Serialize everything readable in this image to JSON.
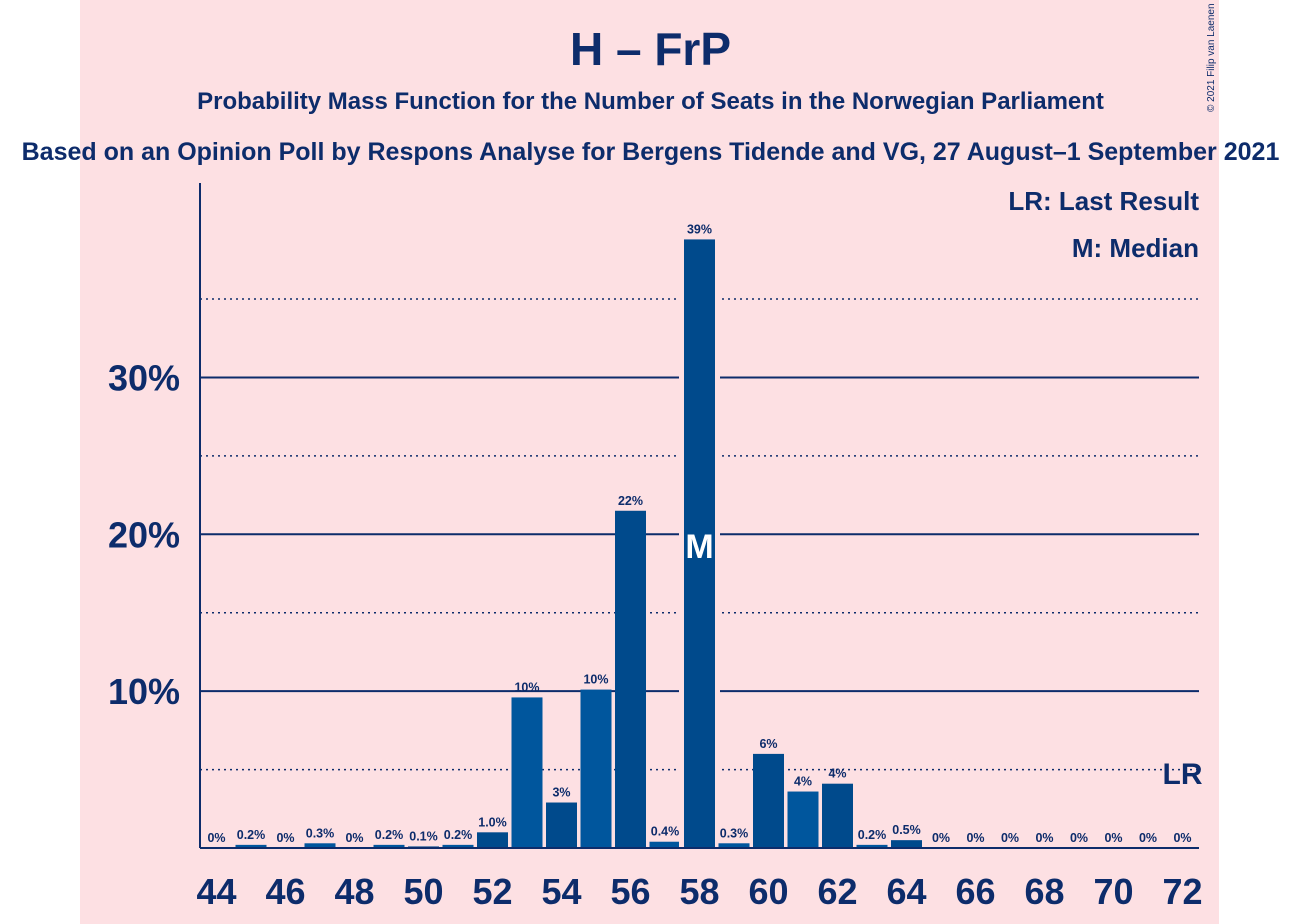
{
  "title": "H – FrP",
  "subtitle": "Probability Mass Function for the Number of Seats in the Norwegian Parliament",
  "source_line": "Based on an Opinion Poll by Respons Analyse for Bergens Tidende and VG, 27 August–1 September 2021",
  "copyright": "© 2021 Filip van Laenen",
  "legend": {
    "last_result": "LR: Last Result",
    "median": "M: Median"
  },
  "colors": {
    "background": "#fde0e3",
    "bar": "#00569d",
    "bar_median_highlight": "#004a8c",
    "text": "#0d2c6b",
    "axis": "#0d2c6b"
  },
  "chart_data": {
    "type": "bar",
    "x": [
      44,
      45,
      46,
      47,
      48,
      49,
      50,
      51,
      52,
      53,
      54,
      55,
      56,
      57,
      58,
      59,
      60,
      61,
      62,
      63,
      64,
      65,
      66,
      67,
      68,
      69,
      70,
      71,
      72
    ],
    "values": [
      0,
      0.2,
      0,
      0.3,
      0,
      0.2,
      0.1,
      0.2,
      1.0,
      9.6,
      2.9,
      10.1,
      21.5,
      0.4,
      38.8,
      0.3,
      6.0,
      3.6,
      4.1,
      0.2,
      0.5,
      0,
      0,
      0,
      0,
      0,
      0,
      0,
      0
    ],
    "labels": [
      "0%",
      "0.2%",
      "0%",
      "0.3%",
      "0%",
      "0.2%",
      "0.1%",
      "0.2%",
      "1.0%",
      "10%",
      "3%",
      "10%",
      "22%",
      "0.4%",
      "39%",
      "0.3%",
      "6%",
      "4%",
      "4%",
      "0.2%",
      "0.5%",
      "0%",
      "0%",
      "0%",
      "0%",
      "0%",
      "0%",
      "0%",
      "0%"
    ],
    "x_tick_labels": [
      "44",
      "46",
      "48",
      "50",
      "52",
      "54",
      "56",
      "58",
      "60",
      "62",
      "64",
      "66",
      "68",
      "70",
      "72"
    ],
    "y_tick_labels": [
      "10%",
      "20%",
      "30%"
    ],
    "y_ticks": [
      10,
      20,
      30
    ],
    "y_minor_ticks": [
      5,
      15,
      25,
      35
    ],
    "ylim": [
      0,
      42.5
    ],
    "median": 58,
    "median_label": "M",
    "last_result": 72,
    "last_result_label": "LR",
    "grid": true,
    "legend_position": "top-right"
  }
}
